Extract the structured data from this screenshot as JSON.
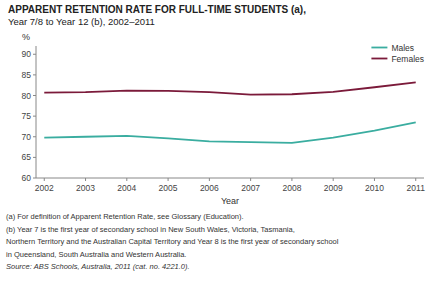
{
  "chart_data": {
    "type": "line",
    "title": "APPARENT RETENTION RATE FOR FULL-TIME STUDENTS (a),",
    "subtitle": "Year 7/8 to Year 12 (b), 2002–2011",
    "x": [
      2002,
      2003,
      2004,
      2005,
      2006,
      2007,
      2008,
      2009,
      2010,
      2011
    ],
    "series": [
      {
        "name": "Males",
        "color": "#3aada0",
        "values": [
          69.8,
          70.0,
          70.2,
          69.6,
          68.9,
          68.7,
          68.5,
          69.8,
          71.5,
          73.5
        ]
      },
      {
        "name": "Females",
        "color": "#7b1a3a",
        "values": [
          80.7,
          80.8,
          81.2,
          81.1,
          80.8,
          80.2,
          80.3,
          80.9,
          82.0,
          83.2
        ]
      }
    ],
    "xlim": [
      2001.8,
      2011.2
    ],
    "xticks": [
      2002,
      2003,
      2004,
      2005,
      2006,
      2007,
      2008,
      2009,
      2010,
      2011
    ],
    "ylim": [
      60,
      92
    ],
    "yticks": [
      60,
      65,
      70,
      75,
      80,
      85,
      90
    ],
    "xlabel": "Year",
    "ylabel": "%",
    "legend": "upper right",
    "grid": false,
    "annotations": [
      "(a) For definition of Apparent Retention Rate, see Glossary (Education).",
      "(b) Year 7 is the first year of secondary school in New South Wales, Victoria, Tasmania,",
      "Northern Territory and the Australian Capital Territory and Year 8 is the first year of secondary school",
      " in Queensland, South Australia and Western Australia.",
      "Source: ABS Schools, Australia, 2011 (cat. no. 4221.0)."
    ]
  }
}
